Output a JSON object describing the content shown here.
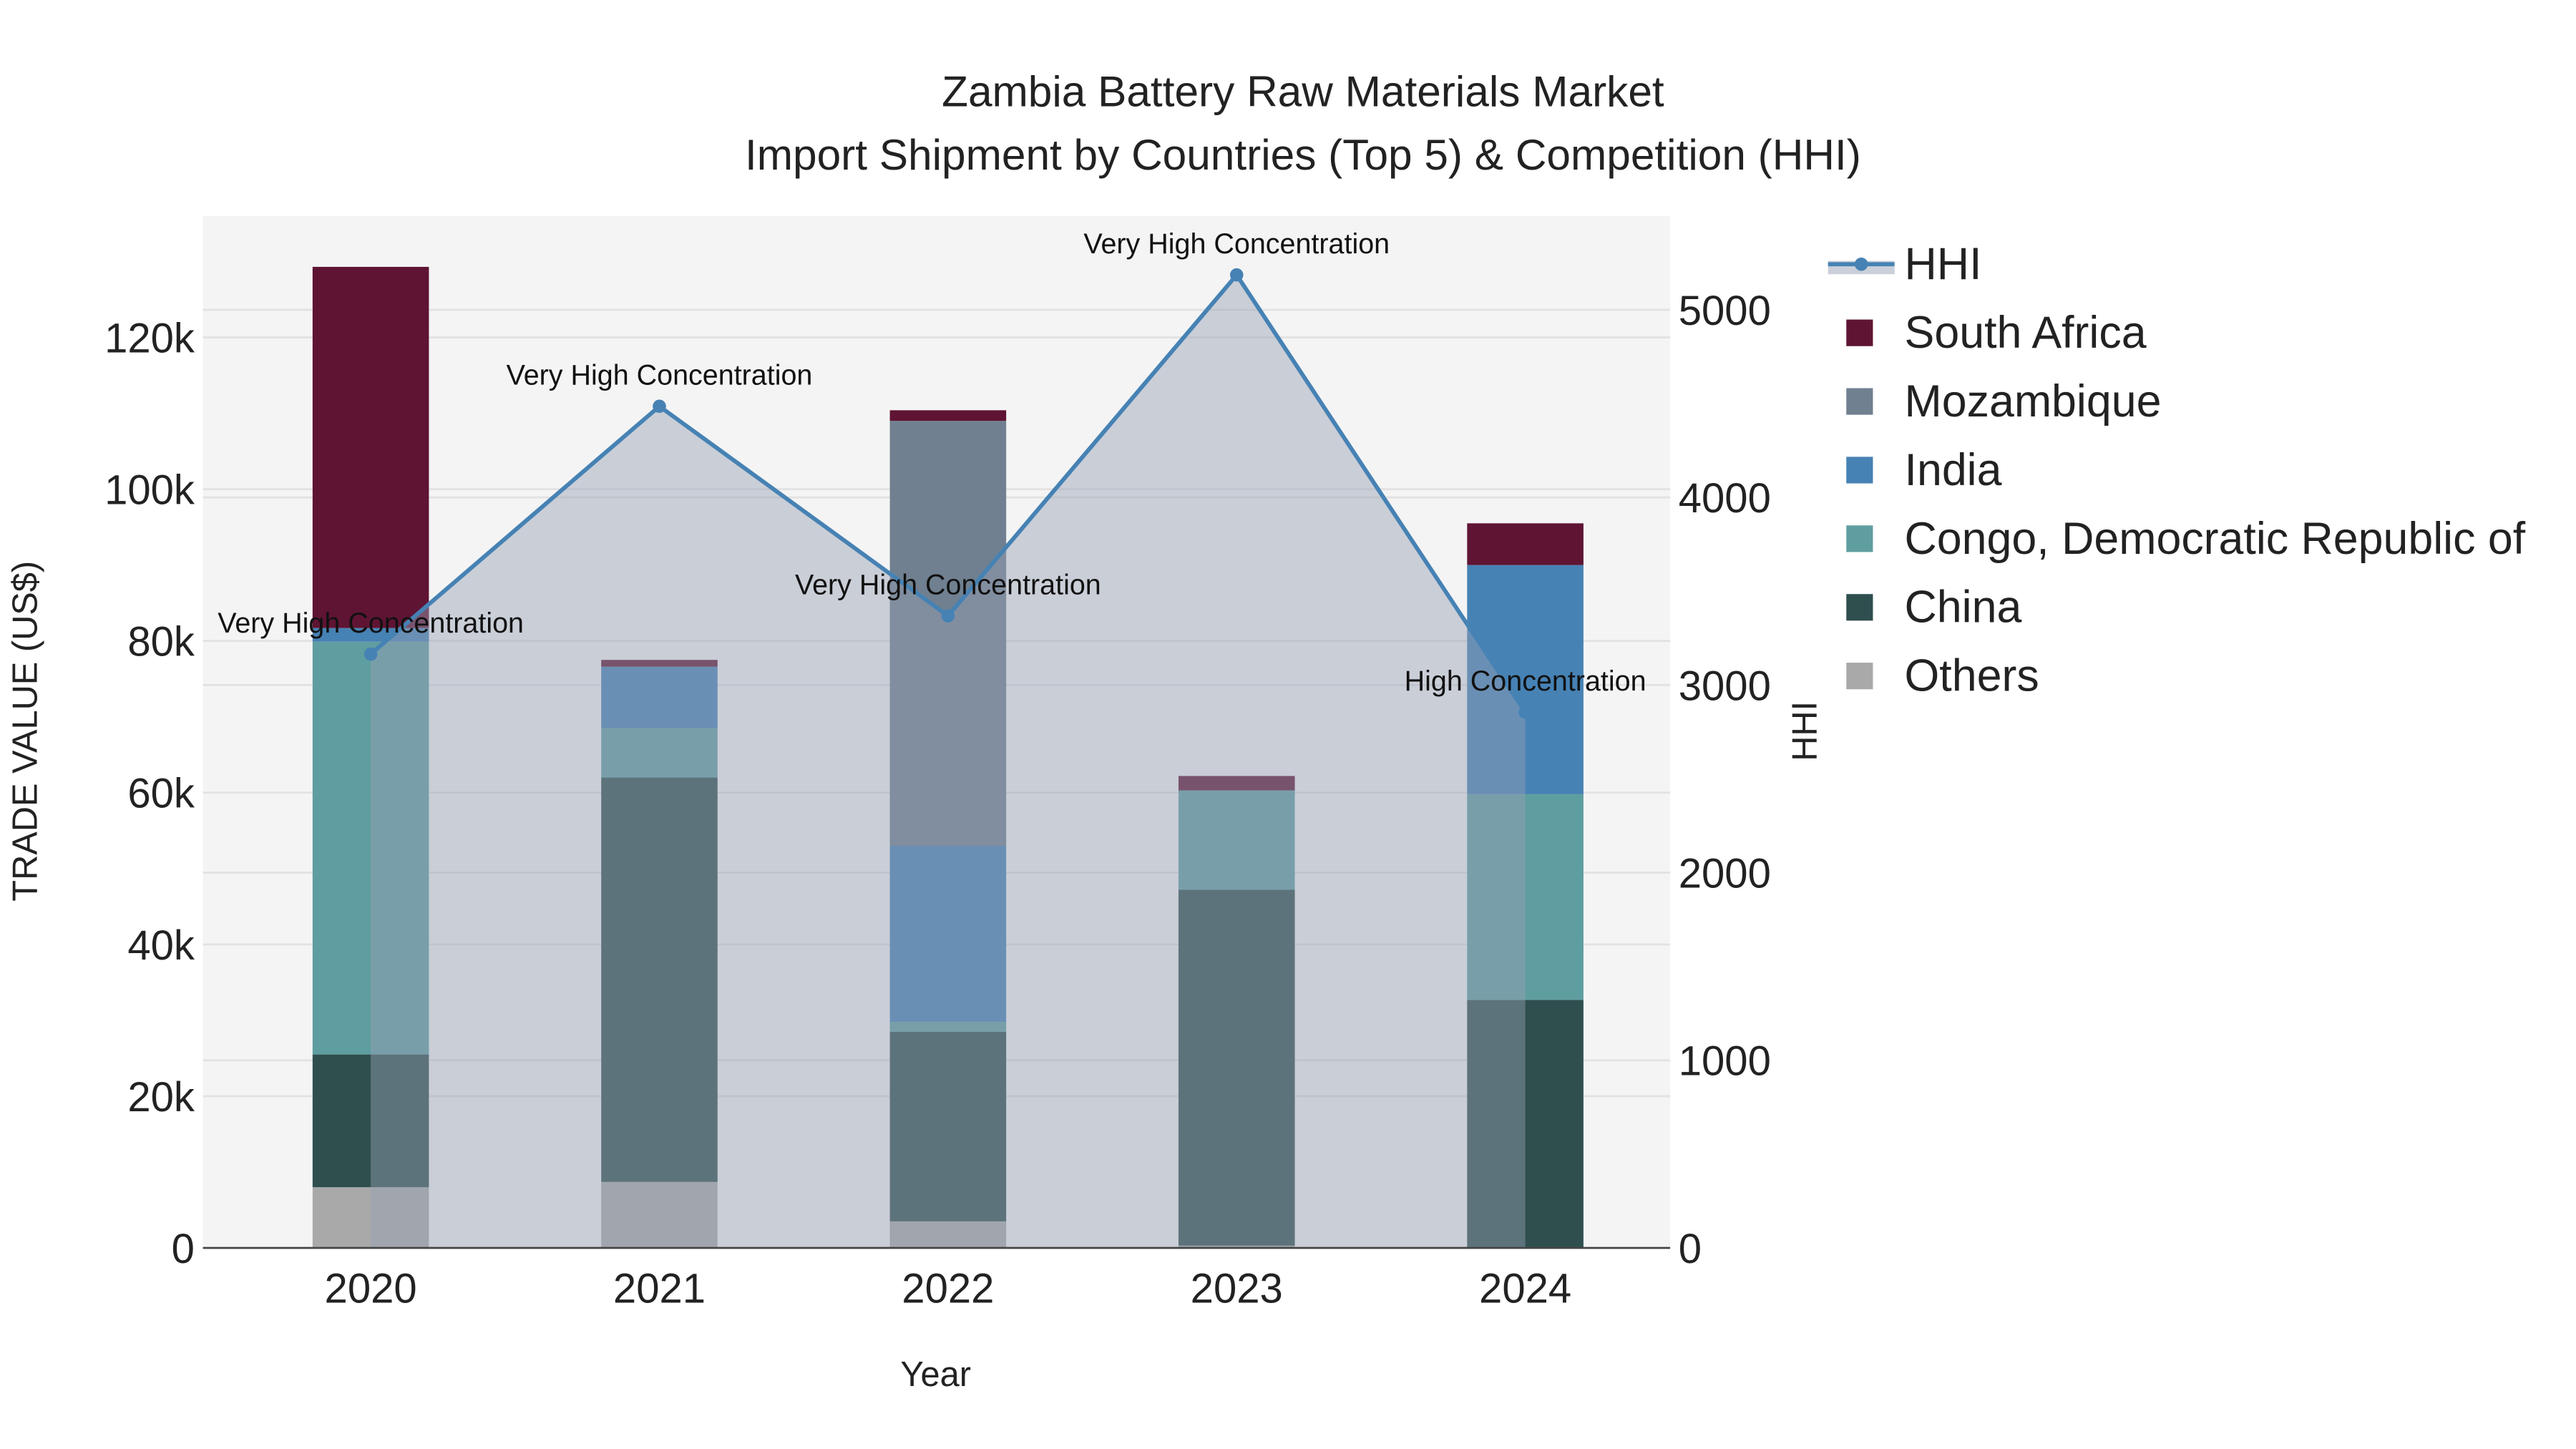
{
  "chart_data": {
    "type": "bar",
    "title": "Zambia Battery Raw Materials Market",
    "subtitle": "Import Shipment by Countries (Top 5) & Competition (HHI)",
    "xlabel": "Year",
    "ylabel": "TRADE VALUE (US$)",
    "y2label": "HHI",
    "ylim": [
      0,
      136000
    ],
    "y2lim": [
      0,
      5500
    ],
    "yticks": [
      0,
      20000,
      40000,
      60000,
      80000,
      100000,
      120000
    ],
    "ytick_labels": [
      "0",
      "20k",
      "40k",
      "60k",
      "80k",
      "100k",
      "120k"
    ],
    "y2ticks": [
      0,
      1000,
      2000,
      3000,
      4000,
      5000
    ],
    "y2tick_labels": [
      "0",
      "1000",
      "2000",
      "3000",
      "4000",
      "5000"
    ],
    "categories": [
      "2020",
      "2021",
      "2022",
      "2023",
      "2024"
    ],
    "stacked": true,
    "series": [
      {
        "name": "Others",
        "color": "#a9a9a9",
        "values": [
          8000,
          8700,
          3500,
          300,
          0
        ]
      },
      {
        "name": "China",
        "color": "#2f4f4f",
        "values": [
          17500,
          53300,
          25000,
          46900,
          32700
        ]
      },
      {
        "name": "Congo, Democratic Republic of",
        "color": "#5f9ea0",
        "values": [
          54400,
          6500,
          1300,
          13100,
          27100
        ]
      },
      {
        "name": "India",
        "color": "#4682b4",
        "values": [
          1800,
          8100,
          23200,
          0,
          30200
        ]
      },
      {
        "name": "Mozambique",
        "color": "#708090",
        "values": [
          0,
          0,
          56000,
          0,
          0
        ]
      },
      {
        "name": "South Africa",
        "color": "#5f1434",
        "values": [
          47600,
          900,
          1400,
          1900,
          5500
        ]
      }
    ],
    "hhi": {
      "name": "HHI",
      "color": "#4682b4",
      "values": [
        3165,
        4486,
        3369,
        5186,
        2855
      ],
      "annotations": [
        "Very High Concentration",
        "Very High Concentration",
        "Very High Concentration",
        "Very High Concentration",
        "High Concentration"
      ]
    },
    "legend_order": [
      "HHI",
      "South Africa",
      "Mozambique",
      "India",
      "Congo, Democratic Republic of",
      "China",
      "Others"
    ],
    "legend_placement": "right",
    "grid": true
  }
}
